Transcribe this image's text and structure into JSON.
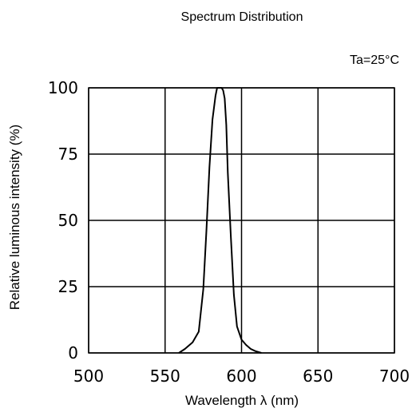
{
  "chart_data": {
    "type": "line",
    "title": "Spectrum Distribution",
    "annotation": "Ta=25°C",
    "xlabel": "Wavelength  λ (nm)",
    "ylabel": "Relative luminous intensity  (%)",
    "xlim": [
      500,
      700
    ],
    "ylim": [
      0,
      100
    ],
    "x_ticks": [
      500,
      550,
      600,
      650,
      700
    ],
    "y_ticks": [
      0,
      25,
      50,
      75,
      100
    ],
    "x_tick_labels": [
      "500",
      "550",
      "600",
      "650",
      "700"
    ],
    "y_tick_labels": [
      "0",
      "25",
      "50",
      "75",
      "100"
    ],
    "grid": true,
    "series": [
      {
        "x": [
          559,
          563,
          568,
          572,
          575,
          577,
          579,
          581,
          583,
          584,
          585,
          586,
          587,
          588,
          589,
          590,
          591,
          593,
          595,
          597,
          600,
          603,
          606,
          609,
          613
        ],
        "y": [
          0,
          1.5,
          4,
          8,
          24,
          46,
          70,
          88,
          97,
          100,
          100,
          100,
          100,
          99,
          96,
          86,
          68,
          44,
          22,
          10,
          5,
          3,
          1.5,
          0.7,
          0
        ]
      }
    ]
  }
}
